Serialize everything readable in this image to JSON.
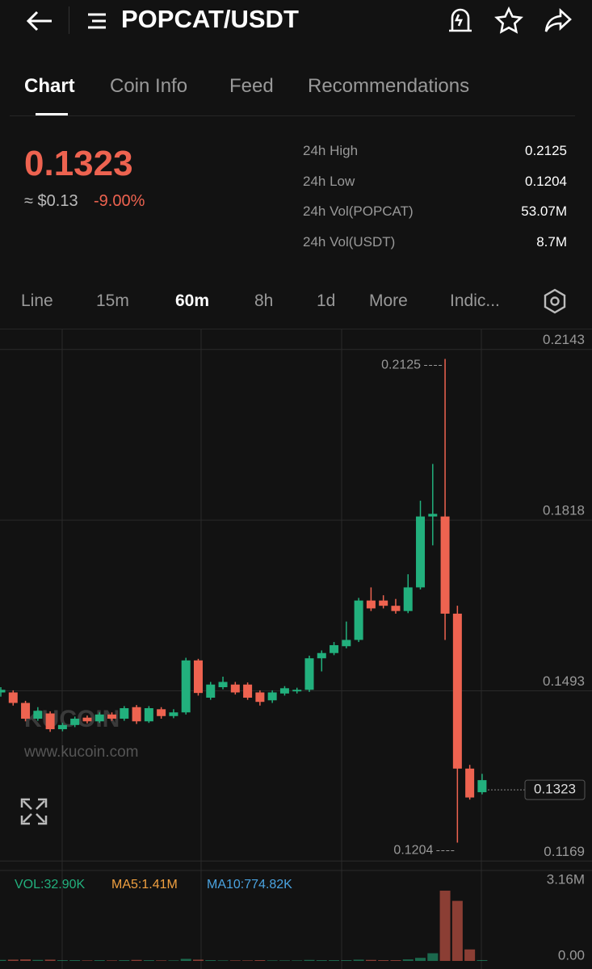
{
  "header": {
    "pair": "POPCAT/USDT"
  },
  "tabs": [
    "Chart",
    "Coin Info",
    "Feed",
    "Recommendations"
  ],
  "ticker": {
    "price": "0.1323",
    "fiat": "≈ $0.13",
    "change": "-9.00%",
    "stats": [
      {
        "label": "24h High",
        "value": "0.2125"
      },
      {
        "label": "24h Low",
        "value": "0.1204"
      },
      {
        "label": "24h Vol(POPCAT)",
        "value": "53.07M"
      },
      {
        "label": "24h Vol(USDT)",
        "value": "8.7M"
      }
    ]
  },
  "intervals": [
    "Line",
    "15m",
    "60m",
    "8h",
    "1d",
    "More",
    "Indic..."
  ],
  "watermark": {
    "logo": "KUCOIN",
    "url": "www.kucoin.com"
  },
  "volume_legend": {
    "vol": "VOL:32.90K",
    "ma5": "MA5:1.41M",
    "ma10": "MA10:774.82K"
  },
  "chart_data": {
    "type": "candlestick",
    "up_color": "#22b07d",
    "down_color": "#ee6350",
    "ylim": [
      0.1151,
      0.2178
    ],
    "yticks": [
      0.2143,
      0.1818,
      0.1493,
      0.1169
    ],
    "high_marker": 0.2125,
    "low_marker": 0.1204,
    "last_price": 0.1323,
    "volume_ylim": [
      0,
      3.16
    ],
    "volume_ticks": [
      {
        "value": 3.16,
        "label": "3.16M"
      },
      {
        "value": 0,
        "label": "0.00"
      }
    ],
    "candles": [
      {
        "open": 0.149,
        "high": 0.15,
        "low": 0.1482,
        "close": 0.1495,
        "volume": 0.04
      },
      {
        "open": 0.149,
        "high": 0.1494,
        "low": 0.1465,
        "close": 0.147,
        "volume": 0.05
      },
      {
        "open": 0.147,
        "high": 0.1474,
        "low": 0.1435,
        "close": 0.144,
        "volume": 0.06
      },
      {
        "open": 0.144,
        "high": 0.1462,
        "low": 0.1436,
        "close": 0.1455,
        "volume": 0.04
      },
      {
        "open": 0.145,
        "high": 0.1454,
        "low": 0.1415,
        "close": 0.142,
        "volume": 0.05
      },
      {
        "open": 0.142,
        "high": 0.1432,
        "low": 0.1416,
        "close": 0.1428,
        "volume": 0.03
      },
      {
        "open": 0.1428,
        "high": 0.1444,
        "low": 0.1424,
        "close": 0.144,
        "volume": 0.03
      },
      {
        "open": 0.1442,
        "high": 0.1446,
        "low": 0.1431,
        "close": 0.1435,
        "volume": 0.02
      },
      {
        "open": 0.1435,
        "high": 0.1452,
        "low": 0.1432,
        "close": 0.1448,
        "volume": 0.03
      },
      {
        "open": 0.1448,
        "high": 0.1452,
        "low": 0.1436,
        "close": 0.144,
        "volume": 0.02
      },
      {
        "open": 0.144,
        "high": 0.1464,
        "low": 0.1436,
        "close": 0.146,
        "volume": 0.03
      },
      {
        "open": 0.1462,
        "high": 0.1466,
        "low": 0.143,
        "close": 0.1435,
        "volume": 0.04
      },
      {
        "open": 0.1435,
        "high": 0.1464,
        "low": 0.1432,
        "close": 0.146,
        "volume": 0.03
      },
      {
        "open": 0.1458,
        "high": 0.1462,
        "low": 0.144,
        "close": 0.1445,
        "volume": 0.02
      },
      {
        "open": 0.1445,
        "high": 0.1458,
        "low": 0.1441,
        "close": 0.1452,
        "volume": 0.02
      },
      {
        "open": 0.1452,
        "high": 0.1556,
        "low": 0.1448,
        "close": 0.1551,
        "volume": 0.08
      },
      {
        "open": 0.1551,
        "high": 0.1554,
        "low": 0.1484,
        "close": 0.1489,
        "volume": 0.05
      },
      {
        "open": 0.148,
        "high": 0.151,
        "low": 0.1476,
        "close": 0.1505,
        "volume": 0.03
      },
      {
        "open": 0.15,
        "high": 0.152,
        "low": 0.1496,
        "close": 0.151,
        "volume": 0.02
      },
      {
        "open": 0.1505,
        "high": 0.151,
        "low": 0.1486,
        "close": 0.149,
        "volume": 0.02
      },
      {
        "open": 0.1505,
        "high": 0.1509,
        "low": 0.1476,
        "close": 0.148,
        "volume": 0.02
      },
      {
        "open": 0.149,
        "high": 0.1494,
        "low": 0.1465,
        "close": 0.1472,
        "volume": 0.03
      },
      {
        "open": 0.1475,
        "high": 0.1494,
        "low": 0.147,
        "close": 0.149,
        "volume": 0.02
      },
      {
        "open": 0.1488,
        "high": 0.1502,
        "low": 0.1484,
        "close": 0.1498,
        "volume": 0.02
      },
      {
        "open": 0.1492,
        "high": 0.1499,
        "low": 0.1488,
        "close": 0.1495,
        "volume": 0.02
      },
      {
        "open": 0.1495,
        "high": 0.156,
        "low": 0.1491,
        "close": 0.1555,
        "volume": 0.04
      },
      {
        "open": 0.1555,
        "high": 0.157,
        "low": 0.153,
        "close": 0.1565,
        "volume": 0.03
      },
      {
        "open": 0.1565,
        "high": 0.1586,
        "low": 0.1561,
        "close": 0.158,
        "volume": 0.03
      },
      {
        "open": 0.1578,
        "high": 0.1625,
        "low": 0.1574,
        "close": 0.159,
        "volume": 0.03
      },
      {
        "open": 0.159,
        "high": 0.167,
        "low": 0.1586,
        "close": 0.1665,
        "volume": 0.05
      },
      {
        "open": 0.1665,
        "high": 0.169,
        "low": 0.1645,
        "close": 0.165,
        "volume": 0.04
      },
      {
        "open": 0.1665,
        "high": 0.1675,
        "low": 0.165,
        "close": 0.1655,
        "volume": 0.03
      },
      {
        "open": 0.1655,
        "high": 0.1668,
        "low": 0.164,
        "close": 0.1645,
        "volume": 0.03
      },
      {
        "open": 0.1645,
        "high": 0.1715,
        "low": 0.1641,
        "close": 0.169,
        "volume": 0.06
      },
      {
        "open": 0.169,
        "high": 0.1855,
        "low": 0.1686,
        "close": 0.1825,
        "volume": 0.12
      },
      {
        "open": 0.1825,
        "high": 0.1925,
        "low": 0.177,
        "close": 0.183,
        "volume": 0.3
      },
      {
        "open": 0.1825,
        "high": 0.2125,
        "low": 0.159,
        "close": 0.164,
        "volume": 2.75
      },
      {
        "open": 0.164,
        "high": 0.1655,
        "low": 0.1204,
        "close": 0.1345,
        "volume": 2.35
      },
      {
        "open": 0.1345,
        "high": 0.1352,
        "low": 0.1286,
        "close": 0.129,
        "volume": 0.45
      },
      {
        "open": 0.13,
        "high": 0.1335,
        "low": 0.1296,
        "close": 0.1323,
        "volume": 0.0329
      }
    ]
  }
}
